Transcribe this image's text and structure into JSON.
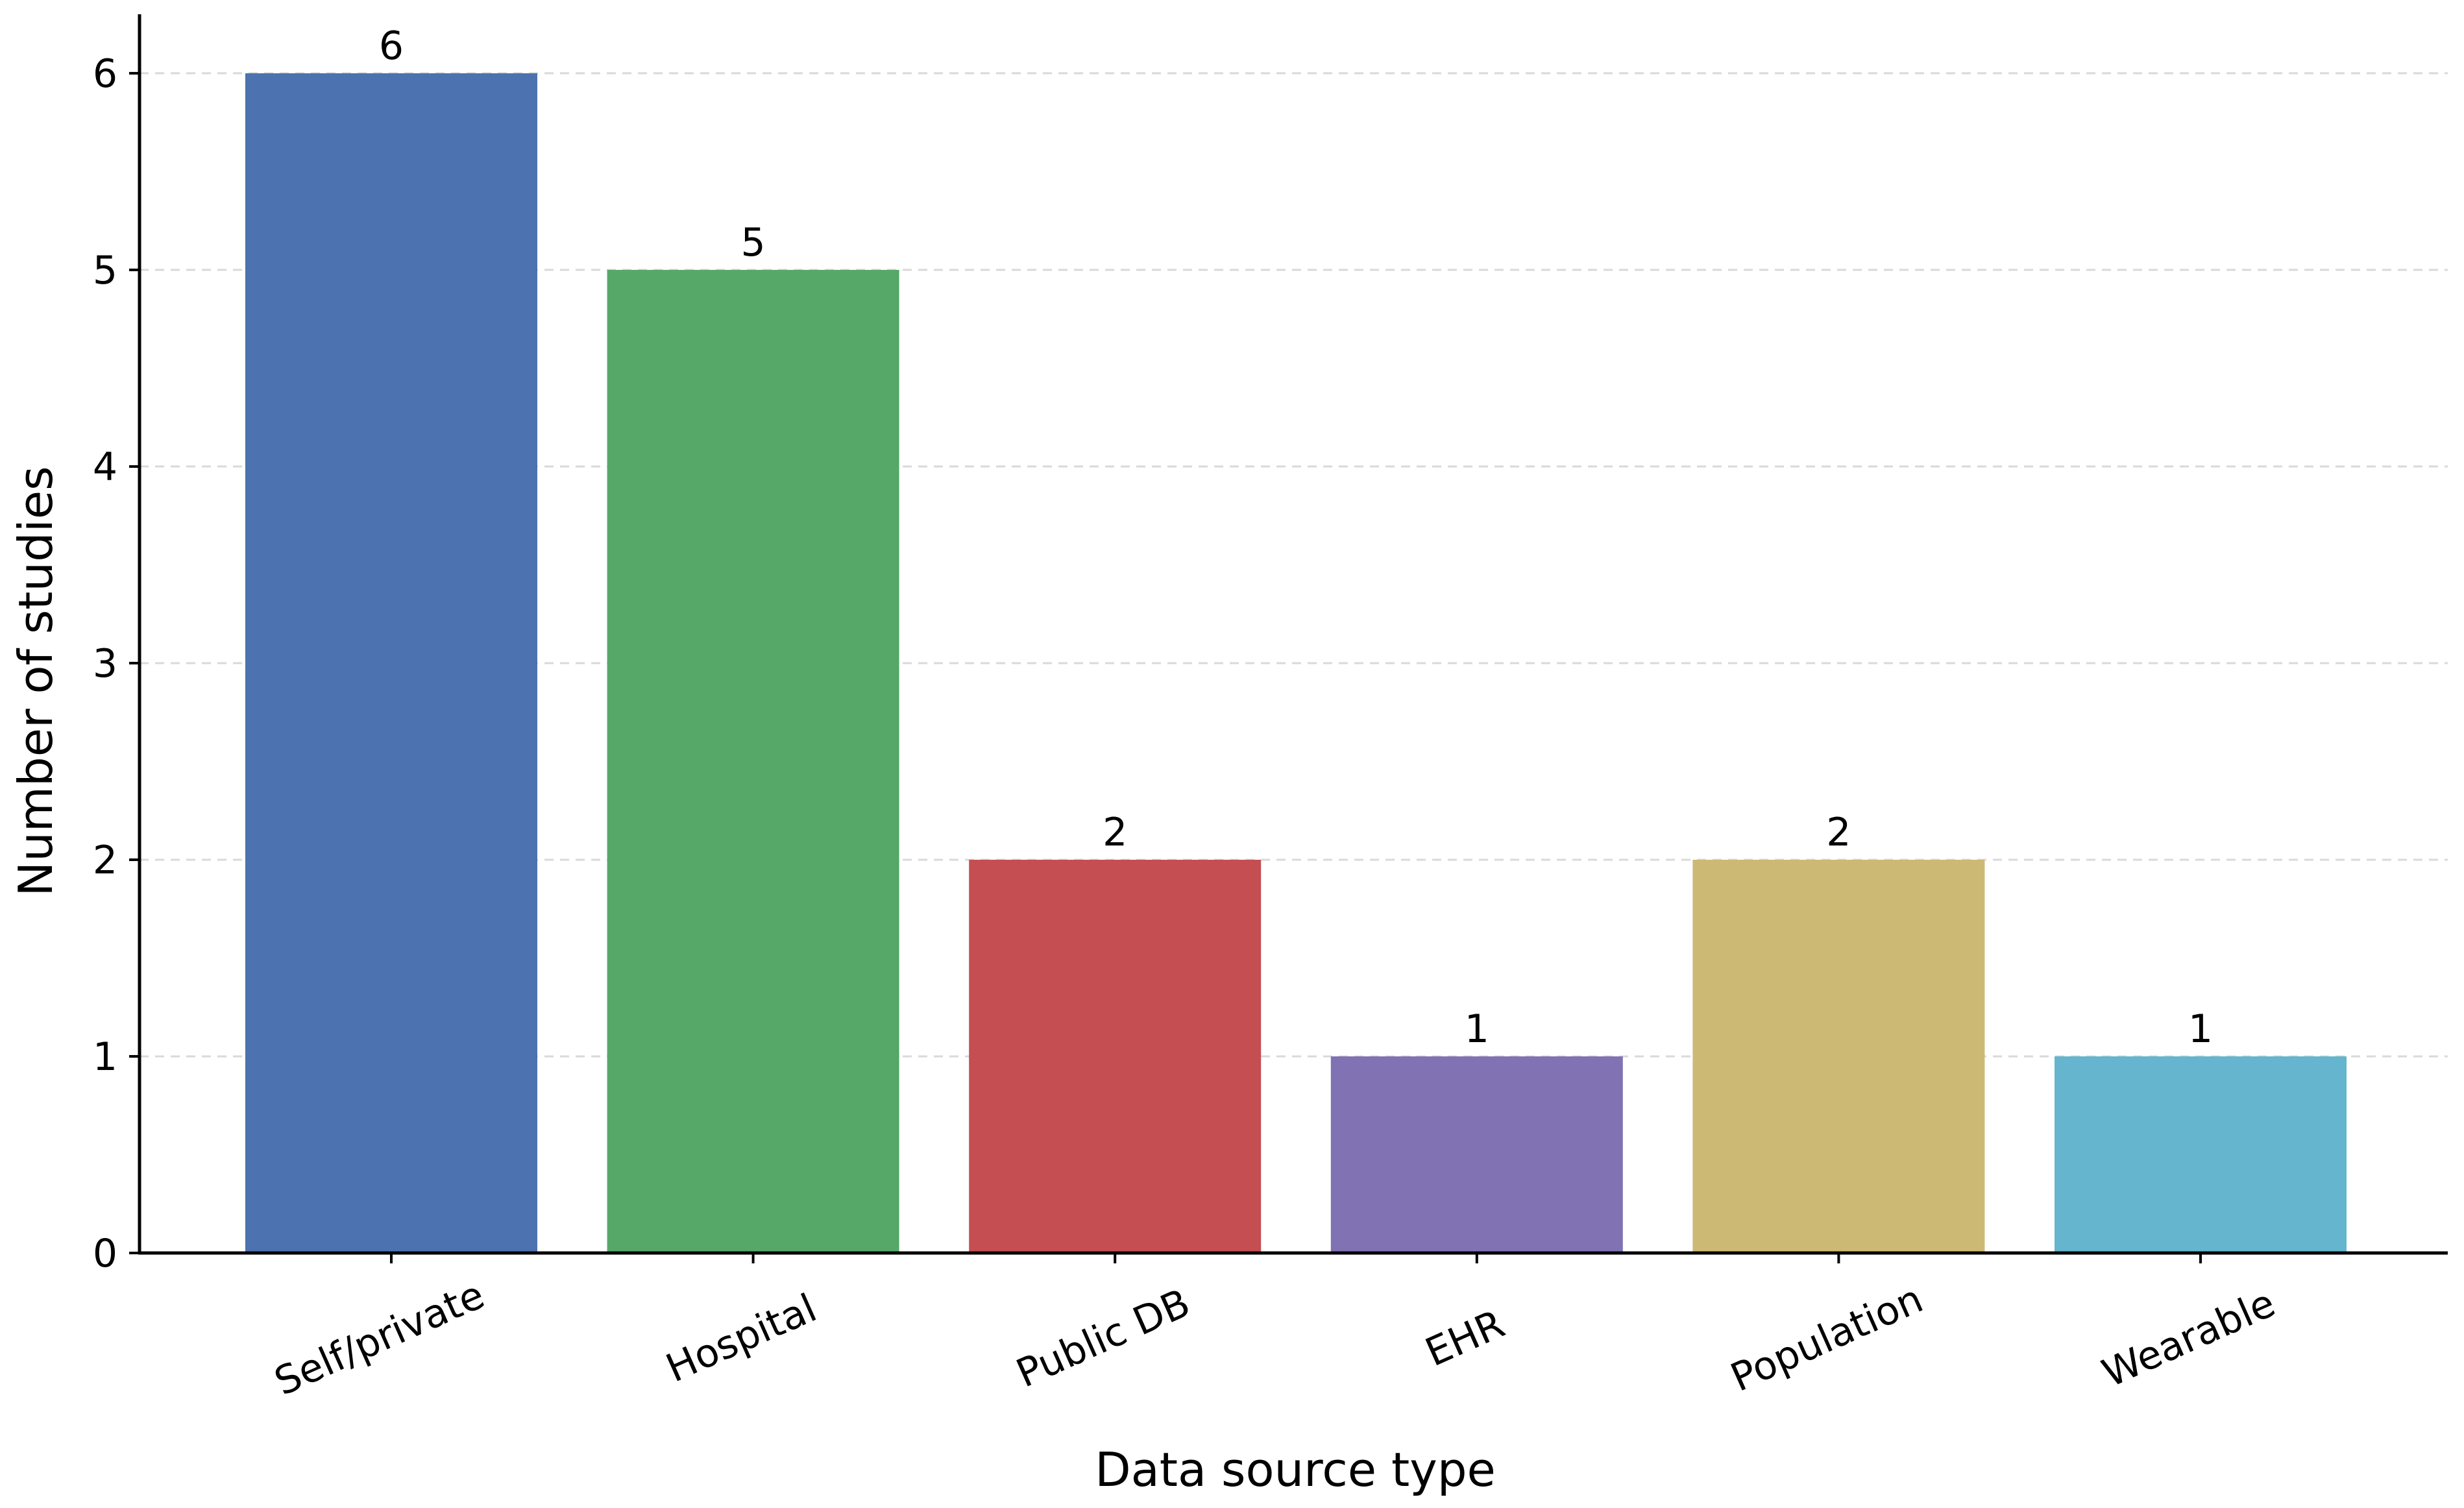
{
  "chart_data": {
    "type": "bar",
    "title": "",
    "xlabel": "Data source type",
    "ylabel": "Number of studies",
    "categories": [
      "Self/private",
      "Hospital",
      "Public DB",
      "EHR",
      "Population",
      "Wearable"
    ],
    "values": [
      6,
      5,
      2,
      1,
      2,
      1
    ],
    "data_labels": [
      "6",
      "5",
      "2",
      "1",
      "2",
      "1"
    ],
    "bar_colors": [
      "#4c72b0",
      "#55a868",
      "#c44e52",
      "#8172b3",
      "#ccb974",
      "#64b5cd"
    ],
    "ylim": [
      0,
      6.3
    ],
    "yticks": [
      0,
      1,
      2,
      3,
      4,
      5,
      6
    ],
    "ytick_labels": [
      "0",
      "1",
      "2",
      "3",
      "4",
      "5",
      "6"
    ],
    "grid": "y-dashed",
    "legend": "none"
  }
}
